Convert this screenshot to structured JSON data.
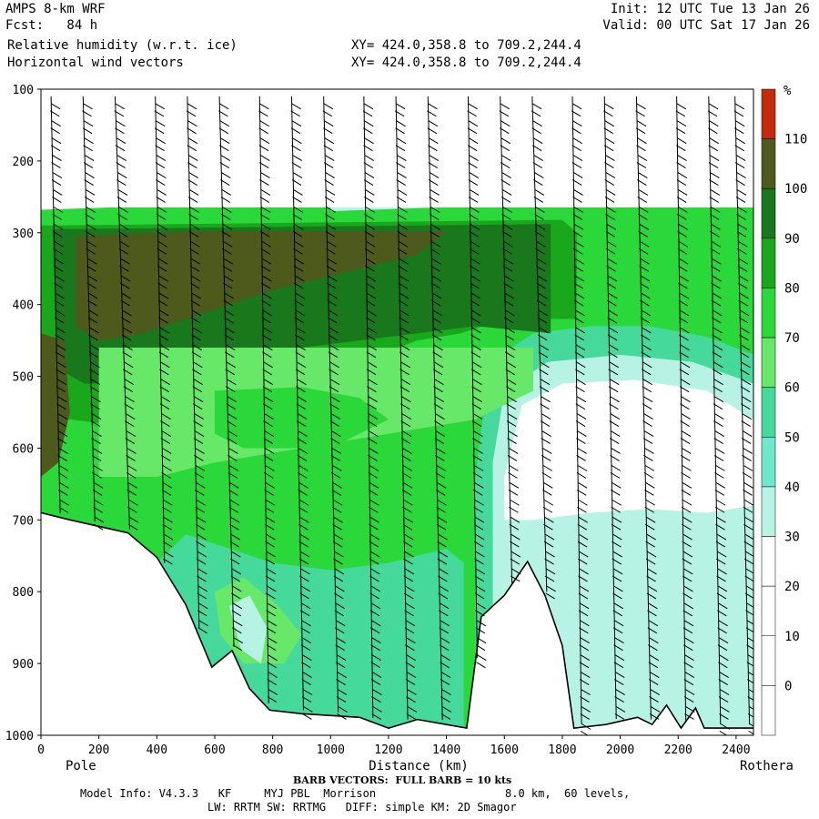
{
  "header": {
    "model": "AMPS 8-km WRF",
    "forecast": "Fcst:   84 h",
    "init": "Init: 12 UTC Tue 13 Jan 26",
    "valid": "Valid: 00 UTC Sat 17 Jan 26",
    "field1": "Relative humidity (w.r.t. ice)",
    "field2": "Horizontal wind vectors",
    "xy1": "XY= 424.0,358.8 to 709.2,244.4",
    "xy2": "XY= 424.0,358.8 to 709.2,244.4"
  },
  "footer": {
    "barb_note": "BARB VECTORS:  FULL BARB = 10 kts",
    "model_info": "Model Info: V4.3.3   KF     MYJ PBL  Morrison",
    "resolution": "8.0 km,  60 levels,",
    "physics": "LW: RRTM SW: RRTMG   DIFF: simple KM: 2D Smagor"
  },
  "chart_data": {
    "type": "heatmap",
    "title": "Relative humidity (w.r.t. ice)",
    "xlabel": "Distance (km)",
    "ylabel": "",
    "xlim": [
      0,
      2460
    ],
    "ylim": [
      1000,
      100
    ],
    "x_ticks": [
      0,
      200,
      400,
      600,
      800,
      1000,
      1200,
      1400,
      1600,
      1800,
      2000,
      2200,
      2400
    ],
    "y_ticks": [
      100,
      200,
      300,
      400,
      500,
      600,
      700,
      800,
      900,
      1000
    ],
    "x_end_labels": {
      "left": "Pole",
      "right": "Rothera"
    },
    "colorbar": {
      "unit": "%",
      "levels": [
        110,
        100,
        90,
        80,
        70,
        60,
        50,
        40,
        30,
        20,
        10,
        0
      ],
      "colors": [
        "#c42a0c",
        "#4d5a1c",
        "#19771c",
        "#19a81c",
        "#2ad83a",
        "#68e868",
        "#46d99c",
        "#6de8cc",
        "#b6f3e5",
        "#ffffff",
        "#ffffff",
        "#ffffff",
        "#ffffff"
      ]
    },
    "fill_colors": {
      "very_moist": "#4d5a1c",
      "moist": "#19771c",
      "mid": "#19a81c",
      "light": "#2ad83a",
      "pale": "#68e868",
      "cyan": "#46d99c",
      "dry": "#b6f3e5",
      "terrain": "#ffffff"
    },
    "cloud_top_hpa": 280,
    "terrain_profile": [
      {
        "x": 0,
        "p": 690
      },
      {
        "x": 100,
        "p": 700
      },
      {
        "x": 300,
        "p": 718
      },
      {
        "x": 400,
        "p": 752
      },
      {
        "x": 500,
        "p": 818
      },
      {
        "x": 590,
        "p": 905
      },
      {
        "x": 660,
        "p": 882
      },
      {
        "x": 720,
        "p": 935
      },
      {
        "x": 790,
        "p": 965
      },
      {
        "x": 900,
        "p": 970
      },
      {
        "x": 1100,
        "p": 975
      },
      {
        "x": 1200,
        "p": 990
      },
      {
        "x": 1300,
        "p": 978
      },
      {
        "x": 1400,
        "p": 985
      },
      {
        "x": 1470,
        "p": 990
      },
      {
        "x": 1520,
        "p": 835
      },
      {
        "x": 1600,
        "p": 805
      },
      {
        "x": 1680,
        "p": 758
      },
      {
        "x": 1740,
        "p": 805
      },
      {
        "x": 1800,
        "p": 875
      },
      {
        "x": 1840,
        "p": 990
      },
      {
        "x": 1950,
        "p": 985
      },
      {
        "x": 2060,
        "p": 975
      },
      {
        "x": 2110,
        "p": 985
      },
      {
        "x": 2160,
        "p": 958
      },
      {
        "x": 2210,
        "p": 990
      },
      {
        "x": 2260,
        "p": 962
      },
      {
        "x": 2290,
        "p": 990
      },
      {
        "x": 2460,
        "p": 990
      }
    ],
    "wind_barb_columns_km": [
      60,
      180,
      300,
      420,
      540,
      660,
      780,
      900,
      1020,
      1140,
      1260,
      1380,
      1500,
      1620,
      1740,
      1860,
      1980,
      2100,
      2220,
      2340,
      2440
    ]
  }
}
